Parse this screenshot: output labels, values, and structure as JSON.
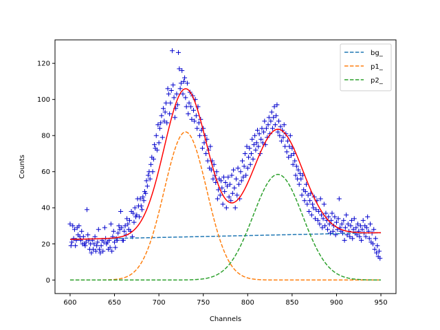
{
  "chart_data": {
    "type": "scatter",
    "xlabel": "Channels",
    "ylabel": "Counts",
    "xlim": [
      583,
      967
    ],
    "ylim": [
      -7.5,
      133
    ],
    "xticks": [
      600,
      650,
      700,
      750,
      800,
      850,
      900,
      950
    ],
    "yticks": [
      0,
      20,
      40,
      60,
      80,
      100,
      120
    ],
    "grid": false,
    "legend_position": "top-right",
    "data_marker": "+",
    "data_color": "#0000cc",
    "fit_color": "#ff0000",
    "model": {
      "x_range": [
        600,
        950
      ],
      "background": {
        "intercept_at_600": 22.5,
        "slope": 0.0106
      },
      "peaks": [
        {
          "amplitude": 82,
          "center": 730,
          "sigma": 24
        },
        {
          "amplitude": 58.5,
          "center": 834,
          "sigma": 28
        }
      ]
    },
    "series": [
      {
        "name": "bg_",
        "color": "#1f77b4",
        "style": "dashed",
        "role": "bg"
      },
      {
        "name": "p1_",
        "color": "#ff7f0e",
        "style": "dashed",
        "role": "p1"
      },
      {
        "name": "p2_",
        "color": "#2ca02c",
        "style": "dashed",
        "role": "p2"
      }
    ],
    "data_points": [
      [
        600,
        31
      ],
      [
        601,
        19
      ],
      [
        602,
        21
      ],
      [
        603,
        30
      ],
      [
        604,
        23
      ],
      [
        605,
        28
      ],
      [
        606,
        19
      ],
      [
        607,
        22
      ],
      [
        608,
        29
      ],
      [
        609,
        25
      ],
      [
        610,
        30
      ],
      [
        611,
        24
      ],
      [
        612,
        22
      ],
      [
        613,
        27
      ],
      [
        614,
        20
      ],
      [
        615,
        24
      ],
      [
        616,
        20
      ],
      [
        617,
        19
      ],
      [
        618,
        21
      ],
      [
        619,
        39
      ],
      [
        620,
        25
      ],
      [
        621,
        22
      ],
      [
        622,
        17
      ],
      [
        623,
        20
      ],
      [
        624,
        15
      ],
      [
        625,
        22
      ],
      [
        626,
        17
      ],
      [
        627,
        20
      ],
      [
        628,
        24
      ],
      [
        629,
        16
      ],
      [
        630,
        19
      ],
      [
        631,
        21
      ],
      [
        632,
        28
      ],
      [
        633,
        17
      ],
      [
        634,
        15
      ],
      [
        635,
        19
      ],
      [
        636,
        22
      ],
      [
        637,
        16
      ],
      [
        638,
        21
      ],
      [
        639,
        29
      ],
      [
        640,
        23
      ],
      [
        641,
        20
      ],
      [
        642,
        21
      ],
      [
        643,
        17
      ],
      [
        644,
        22
      ],
      [
        645,
        18
      ],
      [
        646,
        31
      ],
      [
        647,
        16
      ],
      [
        648,
        24
      ],
      [
        649,
        27
      ],
      [
        650,
        21
      ],
      [
        651,
        18
      ],
      [
        652,
        23
      ],
      [
        653,
        22
      ],
      [
        654,
        26
      ],
      [
        655,
        30
      ],
      [
        656,
        28
      ],
      [
        657,
        38
      ],
      [
        658,
        29
      ],
      [
        659,
        22
      ],
      [
        660,
        22
      ],
      [
        661,
        27
      ],
      [
        662,
        30
      ],
      [
        663,
        25
      ],
      [
        664,
        34
      ],
      [
        665,
        31
      ],
      [
        666,
        28
      ],
      [
        667,
        33
      ],
      [
        668,
        27
      ],
      [
        669,
        38
      ],
      [
        670,
        24
      ],
      [
        671,
        37
      ],
      [
        672,
        32
      ],
      [
        673,
        40
      ],
      [
        674,
        35
      ],
      [
        675,
        36
      ],
      [
        676,
        45
      ],
      [
        677,
        41
      ],
      [
        678,
        35
      ],
      [
        679,
        45
      ],
      [
        680,
        41
      ],
      [
        681,
        39
      ],
      [
        682,
        46
      ],
      [
        683,
        44
      ],
      [
        684,
        49
      ],
      [
        685,
        48
      ],
      [
        686,
        55
      ],
      [
        687,
        52
      ],
      [
        688,
        58
      ],
      [
        689,
        60
      ],
      [
        690,
        56
      ],
      [
        691,
        64
      ],
      [
        692,
        68
      ],
      [
        693,
        60
      ],
      [
        694,
        67
      ],
      [
        695,
        75
      ],
      [
        696,
        73
      ],
      [
        697,
        80
      ],
      [
        698,
        72
      ],
      [
        699,
        86
      ],
      [
        700,
        76
      ],
      [
        701,
        84
      ],
      [
        702,
        87
      ],
      [
        703,
        91
      ],
      [
        704,
        79
      ],
      [
        705,
        95
      ],
      [
        706,
        88
      ],
      [
        707,
        93
      ],
      [
        708,
        98
      ],
      [
        709,
        87
      ],
      [
        710,
        106
      ],
      [
        711,
        103
      ],
      [
        712,
        92
      ],
      [
        713,
        98
      ],
      [
        714,
        105
      ],
      [
        715,
        127
      ],
      [
        716,
        108
      ],
      [
        717,
        101
      ],
      [
        718,
        90
      ],
      [
        719,
        95
      ],
      [
        720,
        103
      ],
      [
        721,
        97
      ],
      [
        722,
        126
      ],
      [
        723,
        117
      ],
      [
        724,
        106
      ],
      [
        725,
        109
      ],
      [
        726,
        116
      ],
      [
        727,
        103
      ],
      [
        728,
        110
      ],
      [
        729,
        112
      ],
      [
        730,
        101
      ],
      [
        731,
        96
      ],
      [
        732,
        109
      ],
      [
        733,
        92
      ],
      [
        734,
        98
      ],
      [
        735,
        104
      ],
      [
        736,
        96
      ],
      [
        737,
        89
      ],
      [
        738,
        102
      ],
      [
        739,
        94
      ],
      [
        740,
        88
      ],
      [
        741,
        100
      ],
      [
        742,
        91
      ],
      [
        743,
        84
      ],
      [
        744,
        96
      ],
      [
        745,
        87
      ],
      [
        746,
        80
      ],
      [
        747,
        89
      ],
      [
        748,
        83
      ],
      [
        749,
        73
      ],
      [
        750,
        84
      ],
      [
        751,
        76
      ],
      [
        752,
        80
      ],
      [
        753,
        70
      ],
      [
        754,
        78
      ],
      [
        755,
        66
      ],
      [
        756,
        72
      ],
      [
        757,
        62
      ],
      [
        758,
        74
      ],
      [
        759,
        61
      ],
      [
        760,
        66
      ],
      [
        761,
        56
      ],
      [
        762,
        64
      ],
      [
        763,
        58
      ],
      [
        764,
        54
      ],
      [
        765,
        60
      ],
      [
        766,
        45
      ],
      [
        767,
        50
      ],
      [
        768,
        56
      ],
      [
        769,
        47
      ],
      [
        770,
        55
      ],
      [
        771,
        51
      ],
      [
        772,
        42
      ],
      [
        773,
        57
      ],
      [
        774,
        49
      ],
      [
        775,
        54
      ],
      [
        776,
        40
      ],
      [
        777,
        52
      ],
      [
        778,
        57
      ],
      [
        779,
        46
      ],
      [
        780,
        53
      ],
      [
        781,
        44
      ],
      [
        782,
        58
      ],
      [
        783,
        48
      ],
      [
        784,
        61
      ],
      [
        785,
        51
      ],
      [
        786,
        40
      ],
      [
        787,
        56
      ],
      [
        788,
        47
      ],
      [
        789,
        62
      ],
      [
        790,
        53
      ],
      [
        791,
        45
      ],
      [
        792,
        60
      ],
      [
        793,
        55
      ],
      [
        794,
        66
      ],
      [
        795,
        57
      ],
      [
        796,
        63
      ],
      [
        797,
        70
      ],
      [
        798,
        58
      ],
      [
        799,
        74
      ],
      [
        800,
        62
      ],
      [
        801,
        68
      ],
      [
        802,
        73
      ],
      [
        803,
        64
      ],
      [
        804,
        70
      ],
      [
        805,
        78
      ],
      [
        806,
        67
      ],
      [
        807,
        75
      ],
      [
        808,
        80
      ],
      [
        809,
        72
      ],
      [
        810,
        76
      ],
      [
        811,
        83
      ],
      [
        812,
        74
      ],
      [
        813,
        81
      ],
      [
        814,
        70
      ],
      [
        815,
        78
      ],
      [
        816,
        84
      ],
      [
        817,
        76
      ],
      [
        818,
        82
      ],
      [
        819,
        88
      ],
      [
        820,
        75
      ],
      [
        821,
        84
      ],
      [
        822,
        79
      ],
      [
        823,
        86
      ],
      [
        824,
        90
      ],
      [
        825,
        81
      ],
      [
        826,
        88
      ],
      [
        827,
        93
      ],
      [
        828,
        84
      ],
      [
        829,
        90
      ],
      [
        830,
        96
      ],
      [
        831,
        86
      ],
      [
        832,
        91
      ],
      [
        833,
        97
      ],
      [
        834,
        82
      ],
      [
        835,
        88
      ],
      [
        836,
        80
      ],
      [
        837,
        85
      ],
      [
        838,
        77
      ],
      [
        839,
        83
      ],
      [
        840,
        79
      ],
      [
        841,
        86
      ],
      [
        842,
        74
      ],
      [
        843,
        81
      ],
      [
        844,
        71
      ],
      [
        845,
        77
      ],
      [
        846,
        68
      ],
      [
        847,
        74
      ],
      [
        848,
        80
      ],
      [
        849,
        69
      ],
      [
        850,
        73
      ],
      [
        851,
        64
      ],
      [
        852,
        70
      ],
      [
        853,
        66
      ],
      [
        854,
        58
      ],
      [
        855,
        63
      ],
      [
        856,
        56
      ],
      [
        857,
        61
      ],
      [
        858,
        53
      ],
      [
        859,
        59
      ],
      [
        860,
        56
      ],
      [
        861,
        47
      ],
      [
        862,
        58
      ],
      [
        863,
        50
      ],
      [
        864,
        44
      ],
      [
        865,
        49
      ],
      [
        866,
        53
      ],
      [
        867,
        42
      ],
      [
        868,
        47
      ],
      [
        869,
        38
      ],
      [
        870,
        44
      ],
      [
        871,
        48
      ],
      [
        872,
        36
      ],
      [
        873,
        42
      ],
      [
        874,
        40
      ],
      [
        875,
        46
      ],
      [
        876,
        34
      ],
      [
        877,
        39
      ],
      [
        878,
        44
      ],
      [
        879,
        33
      ],
      [
        880,
        38
      ],
      [
        881,
        31
      ],
      [
        882,
        45
      ],
      [
        883,
        36
      ],
      [
        884,
        29
      ],
      [
        885,
        34
      ],
      [
        886,
        42
      ],
      [
        887,
        30
      ],
      [
        888,
        37
      ],
      [
        889,
        33
      ],
      [
        890,
        28
      ],
      [
        891,
        35
      ],
      [
        892,
        31
      ],
      [
        893,
        26
      ],
      [
        894,
        33
      ],
      [
        895,
        37
      ],
      [
        896,
        27
      ],
      [
        897,
        30
      ],
      [
        898,
        35
      ],
      [
        899,
        25
      ],
      [
        900,
        32
      ],
      [
        901,
        28
      ],
      [
        902,
        34
      ],
      [
        903,
        45
      ],
      [
        904,
        29
      ],
      [
        905,
        27
      ],
      [
        906,
        31
      ],
      [
        907,
        26
      ],
      [
        908,
        33
      ],
      [
        909,
        22
      ],
      [
        910,
        29
      ],
      [
        911,
        36
      ],
      [
        912,
        25
      ],
      [
        913,
        31
      ],
      [
        914,
        27
      ],
      [
        915,
        24
      ],
      [
        916,
        30
      ],
      [
        917,
        33
      ],
      [
        918,
        23
      ],
      [
        919,
        28
      ],
      [
        920,
        34
      ],
      [
        921,
        26
      ],
      [
        922,
        29
      ],
      [
        923,
        25
      ],
      [
        924,
        31
      ],
      [
        925,
        27
      ],
      [
        926,
        24
      ],
      [
        927,
        30
      ],
      [
        928,
        22
      ],
      [
        929,
        28
      ],
      [
        930,
        33
      ],
      [
        931,
        26
      ],
      [
        932,
        30
      ],
      [
        933,
        24
      ],
      [
        934,
        29
      ],
      [
        935,
        35
      ],
      [
        936,
        27
      ],
      [
        937,
        23
      ],
      [
        938,
        31
      ],
      [
        939,
        21
      ],
      [
        940,
        26
      ],
      [
        941,
        20
      ],
      [
        942,
        28
      ],
      [
        943,
        17
      ],
      [
        944,
        23
      ],
      [
        945,
        15
      ],
      [
        946,
        19
      ],
      [
        947,
        13
      ],
      [
        948,
        16
      ],
      [
        949,
        12
      ]
    ]
  }
}
